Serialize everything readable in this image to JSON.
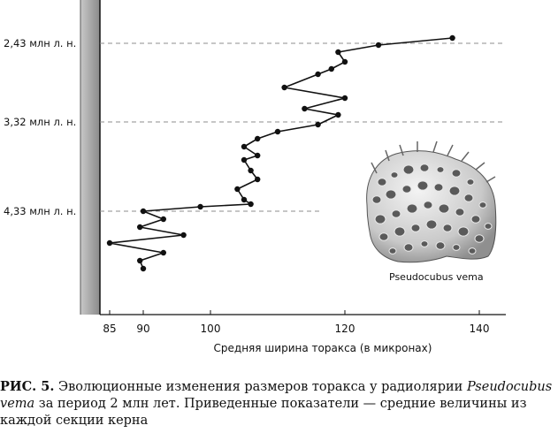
{
  "chart_data": {
    "type": "line",
    "title": "",
    "xlabel": "Средняя ширина торакса (в микронах)",
    "ylabel": "",
    "x_ticks": [
      85,
      90,
      100,
      120,
      140
    ],
    "xlim": [
      80,
      142
    ],
    "ylim": [
      2.17,
      5.2
    ],
    "y_reference_lines": [
      {
        "value": 2.43,
        "label": "2,43 млн л. н."
      },
      {
        "value": 3.32,
        "label": "3,32 млн л. н."
      },
      {
        "value": 4.33,
        "label": "4,33 млн л. н."
      }
    ],
    "series": [
      {
        "name": "Pseudocubus vema",
        "x": [
          136,
          125,
          119,
          120,
          118,
          116,
          111,
          120,
          114,
          119,
          116,
          110,
          107,
          105,
          107,
          105,
          106,
          107,
          104,
          105,
          106,
          98.5,
          90,
          93,
          89.5,
          96,
          85,
          93,
          89.5,
          90
        ],
        "y": [
          2.37,
          2.45,
          2.53,
          2.64,
          2.72,
          2.78,
          2.93,
          3.05,
          3.17,
          3.24,
          3.35,
          3.43,
          3.51,
          3.6,
          3.7,
          3.75,
          3.87,
          3.97,
          4.08,
          4.2,
          4.25,
          4.28,
          4.33,
          4.42,
          4.51,
          4.6,
          4.69,
          4.8,
          4.89,
          4.98
        ]
      }
    ]
  },
  "inset": {
    "species_label": "Pseudocubus vema"
  },
  "caption": {
    "fig_label": "РИС. 5.",
    "text_before": " Эволюционные изменения размеров торакса у радиолярии ",
    "species": "Pseudocubus vema",
    "text_after": " за период 2 млн лет. Приведенные показатели — средние величины из каждой секции керна"
  },
  "colors": {
    "line": "#111111",
    "reference_line": "#8c8c8c",
    "core_bar_dark": "#8a8a8a",
    "core_bar_light": "#d6d6d6"
  }
}
